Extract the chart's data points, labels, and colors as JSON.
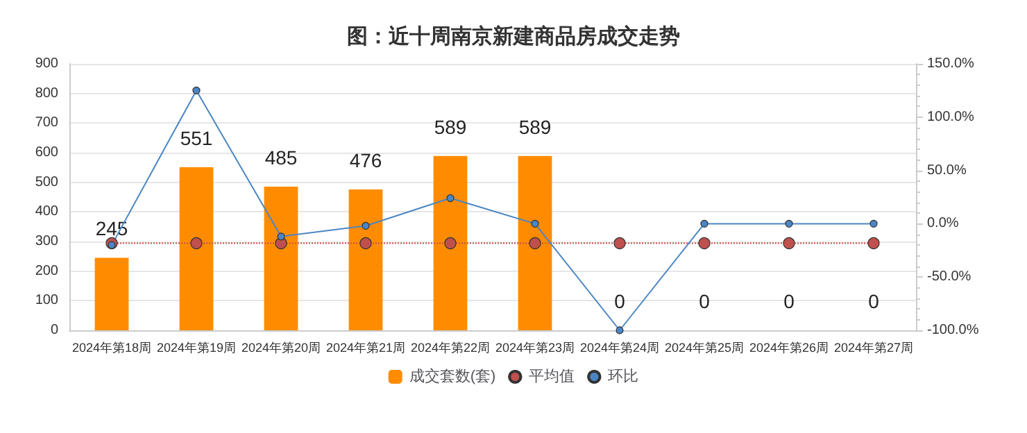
{
  "chart_data": {
    "type": "bar",
    "title": "图：近十周南京新建商品房成交走势",
    "categories": [
      "2024年第18周",
      "2024年第19周",
      "2024年第20周",
      "2024年第21周",
      "2024年第22周",
      "2024年第23周",
      "2024年第24周",
      "2024年第25周",
      "2024年第26周",
      "2024年第27周"
    ],
    "series": [
      {
        "name": "成交套数(套)",
        "color": "#ff8c00",
        "values": [
          245,
          551,
          485,
          476,
          589,
          589,
          0,
          0,
          0,
          0
        ],
        "data_labels": true
      },
      {
        "name": "平均值",
        "type": "line",
        "color": "#c0504d",
        "line_style": "dotted",
        "marker": "circle",
        "values": [
          294,
          294,
          294,
          294,
          294,
          294,
          294,
          294,
          294,
          294
        ]
      },
      {
        "name": "环比",
        "type": "line",
        "color": "#4a86c5",
        "line_style": "solid",
        "marker": "circle",
        "axis": "y2",
        "values": [
          -20,
          125,
          -12,
          -2,
          24,
          0,
          -100,
          0,
          0,
          0
        ]
      }
    ],
    "ylim": [
      0,
      900
    ],
    "yticks": [
      0,
      100,
      200,
      300,
      400,
      500,
      600,
      700,
      800,
      900
    ],
    "y2lim": [
      -100,
      150
    ],
    "y2ticks": [
      {
        "value": -100,
        "label": "-100.0%"
      },
      {
        "value": -50,
        "label": "-50.0%"
      },
      {
        "value": 0,
        "label": "0.0%"
      },
      {
        "value": 50,
        "label": "50.0%"
      },
      {
        "value": 100,
        "label": "100.0%"
      },
      {
        "value": 150,
        "label": "150.0%"
      }
    ],
    "grid": "y",
    "legend": "bottom"
  }
}
